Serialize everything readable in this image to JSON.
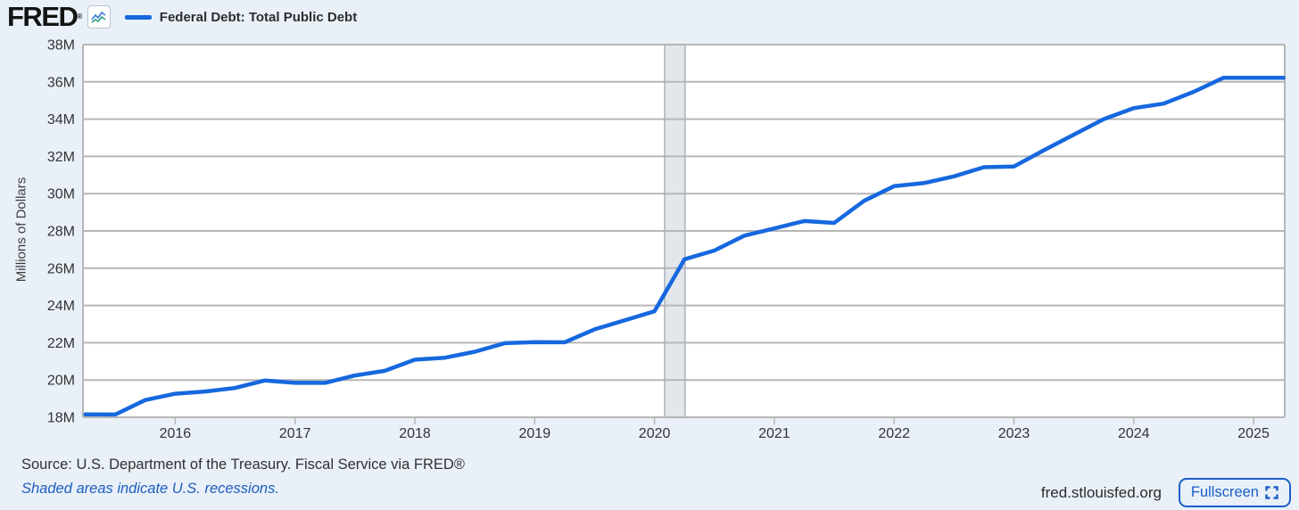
{
  "header": {
    "logo": "FRED",
    "logo_registered": "®",
    "legend_label": "Federal Debt: Total Public Debt"
  },
  "chart_data": {
    "type": "line",
    "series_name": "Federal Debt: Total Public Debt",
    "ylabel": "Millions of Dollars",
    "units_note": "axis labels shown in millions (M) of millions of dollars",
    "ylim": [
      18000000,
      38000000
    ],
    "y_ticks": [
      18000000,
      20000000,
      22000000,
      24000000,
      26000000,
      28000000,
      30000000,
      32000000,
      34000000,
      36000000,
      38000000
    ],
    "y_tick_labels": [
      "18M",
      "20M",
      "22M",
      "24M",
      "26M",
      "28M",
      "30M",
      "32M",
      "34M",
      "36M",
      "38M"
    ],
    "xlim": [
      2015.23,
      2025.26
    ],
    "x_ticks": [
      2016,
      2017,
      2018,
      2019,
      2020,
      2021,
      2022,
      2023,
      2024,
      2025
    ],
    "x_tick_labels": [
      "2016",
      "2017",
      "2018",
      "2019",
      "2020",
      "2021",
      "2022",
      "2023",
      "2024",
      "2025"
    ],
    "grid": true,
    "legend_position": "top-left-header",
    "recession_bands": [
      [
        2020.085,
        2020.255
      ]
    ],
    "x": [
      2015.25,
      2015.5,
      2015.75,
      2016.0,
      2016.25,
      2016.5,
      2016.75,
      2017.0,
      2017.25,
      2017.5,
      2017.75,
      2018.0,
      2018.25,
      2018.5,
      2018.75,
      2019.0,
      2019.25,
      2019.5,
      2019.75,
      2020.0,
      2020.25,
      2020.5,
      2020.75,
      2021.0,
      2021.25,
      2021.5,
      2021.75,
      2022.0,
      2022.25,
      2022.5,
      2022.75,
      2023.0,
      2023.25,
      2023.5,
      2023.75,
      2024.0,
      2024.25,
      2024.5,
      2024.75,
      2025.0,
      2025.25
    ],
    "values": [
      18152560,
      18150618,
      18922179,
      19264939,
      19381591,
      19573445,
      19976827,
      19846420,
      19844554,
      20244900,
      20492747,
      21089643,
      21195070,
      21516058,
      21974096,
      22027880,
      22023546,
      22719402,
      23201380,
      23686791,
      26477122,
      26945391,
      27747798,
      28132570,
      28529436,
      28428919,
      29617215,
      30400802,
      30568571,
      30928912,
      31419689,
      31458438,
      32332274,
      33167334,
      34001494,
      34586710,
      34831634,
      35464674,
      36218605,
      36214270,
      36213557
    ]
  },
  "footer": {
    "source": "Source: U.S. Department of the Treasury. Fiscal Service via FRED®",
    "recessions_note": "Shaded areas indicate U.S. recessions.",
    "site": "fred.stlouisfed.org",
    "fullscreen_label": "Fullscreen"
  },
  "colors": {
    "page_bg": "#e9f0f8",
    "plot_bg": "#ffffff",
    "grid": "#b6b6b6",
    "line": "#1668de",
    "recession_fill": "#e3e7ec",
    "recession_border": "#aab0b8",
    "tick_text": "#333333",
    "link_blue": "#1c5dbe",
    "button_blue": "#1a5fc8",
    "icon_blue": "#3b77d8",
    "icon_green": "#2aa07a"
  }
}
